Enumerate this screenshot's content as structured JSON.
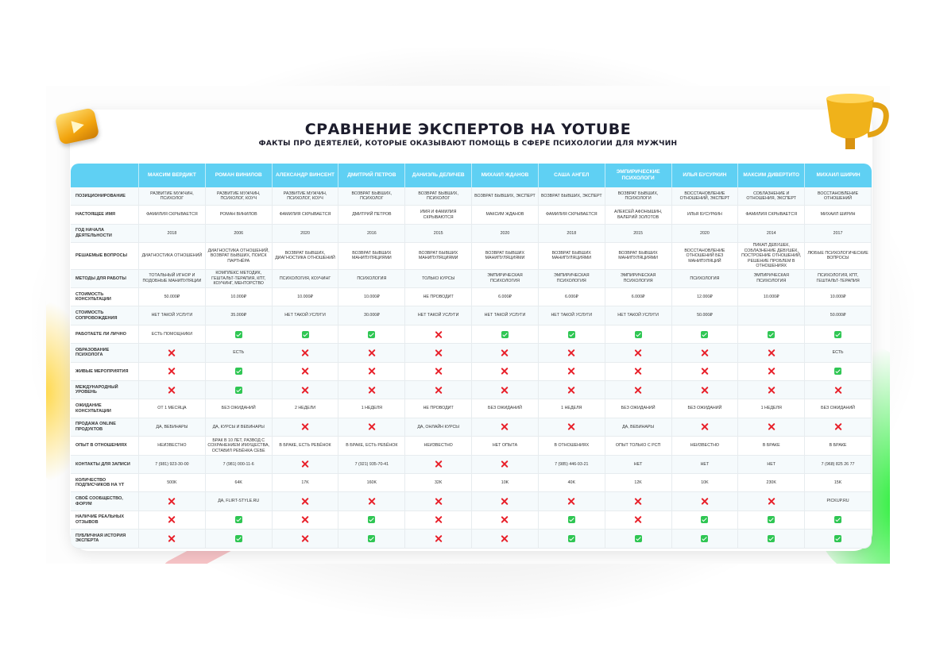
{
  "header": {
    "title": "СРАВНЕНИЕ ЭКСПЕРТОВ НА YOTUBE",
    "subtitle": "ФАКТЫ ПРО ДЕЯТЕЛЕЙ, КОТОРЫЕ ОКАЗЫВАЮТ ПОМОЩЬ В СФЕРЕ ПСИХОЛОГИИ ДЛЯ МУЖЧИН"
  },
  "colors": {
    "header_bg": "#5fd0f3",
    "check": "#2fc653",
    "cross": "#e8202a"
  },
  "table": {
    "experts": [
      "Максим Вердикт",
      "Роман Винилов",
      "Александр Винсент",
      "Дмитрий Петров",
      "Даниэль Деличев",
      "Михаил Жданов",
      "Саша Ангел",
      "Эмпирические психологи",
      "Илья Бусуркин",
      "Максим Дивертито",
      "Михаил Ширин"
    ],
    "rows": [
      {
        "label": "Позиционирование",
        "cells": [
          "Развитие мужчин, психолог",
          "Развитие мужчин, психолог, коуч",
          "Развитие мужчин, психолог, коуч",
          "Возврат бывших, психолог",
          "Возврат бывших, психолог",
          "Возврат бывших, эксперт",
          "Возврат бывших, эксперт",
          "Возврат бывших, психологи",
          "Восстановление отношений, эксперт",
          "Соблазнение и отношения, эксперт",
          "Восстановление отношений"
        ]
      },
      {
        "label": "Настоящее имя",
        "cells": [
          "Фамилия скрывается",
          "Роман Винилов",
          "Фамилия скрывается",
          "Дмитрий Петров",
          "Имя и фамилия скрываются",
          "Максим Жданов",
          "Фамилия скрывается",
          "Алексей Афонышин, Валерий Золотов",
          "Илья Бусуркин",
          "Фамилия скрывается",
          "Михаил Ширин"
        ]
      },
      {
        "label": "Год начала деятельности",
        "cells": [
          "2018",
          "2006",
          "2020",
          "2016",
          "2015",
          "2020",
          "2018",
          "2015",
          "2020",
          "2014",
          "2017"
        ]
      },
      {
        "label": "Решаемые вопросы",
        "cells": [
          "Диагностика отношений",
          "Диагностика отношений, возврат бывших, поиск партнёра",
          "Возврат бывших, диагностика отношений",
          "Возврат бывших манипуляциями",
          "Возврат бывших манипуляциями",
          "Возврат бывших манипуляциями",
          "Возврат бывших манипуляциями",
          "Возврат бывших манипуляциями",
          "Восстановление отношений без манипуляций",
          "Пикап девушек, соблазнение девушек, построение отношений, решение проблем в отношениях",
          "Любые психологические вопросы"
        ]
      },
      {
        "label": "Методы для работы",
        "cells": [
          "Тотальный игнор и подобные манипуляции",
          "Комплекс методик, гештальт-терапия, КПТ, коучинг, менторство",
          "Психология, коучинг",
          "Психология",
          "Только курсы",
          "Эмпирическая психология",
          "Эмпирическая психология",
          "Эмпирическая психология",
          "Психология",
          "Эмпирическая психология",
          "Психология, КПТ, гештальт-терапия"
        ]
      },
      {
        "label": "Стоимость консультации",
        "cells": [
          "50.000₽",
          "10.000₽",
          "10.000₽",
          "10.000₽",
          "Не проводит",
          "6.000₽",
          "6.000₽",
          "6.000₽",
          "12.000₽",
          "10.000₽",
          "10.000₽"
        ]
      },
      {
        "label": "Стоимость сопровождения",
        "cells": [
          "Нет такой услуги",
          "35.000₽",
          "Нет такой услуги",
          "30.000₽",
          "Нет такой услуги",
          "Нет такой услуги",
          "Нет такой услуги",
          "Нет такой услуги",
          "50.000₽",
          "",
          "50.000₽"
        ]
      },
      {
        "label": "Работаете ли лично",
        "cells": [
          "Есть помощники",
          "✓",
          "✓",
          "✓",
          "✗",
          "✓",
          "✓",
          "✓",
          "✓",
          "✓",
          "✓"
        ]
      },
      {
        "label": "Образование психолога",
        "cells": [
          "✗",
          "Есть",
          "✗",
          "✗",
          "✗",
          "✗",
          "✗",
          "✗",
          "✗",
          "✗",
          "Есть"
        ]
      },
      {
        "label": "Живые мероприятия",
        "cells": [
          "✗",
          "✓",
          "✗",
          "✗",
          "✗",
          "✗",
          "✗",
          "✗",
          "✗",
          "✗",
          "✓"
        ]
      },
      {
        "label": "Международный уровень",
        "cells": [
          "✗",
          "✓",
          "✗",
          "✗",
          "✗",
          "✗",
          "✗",
          "✗",
          "✗",
          "✗",
          "✗"
        ]
      },
      {
        "label": "Ожидание консультации",
        "cells": [
          "От 1 месяца",
          "Без ожиданий",
          "2 недели",
          "1 неделя",
          "Не проводит",
          "Без ожиданий",
          "1 неделя",
          "Без ожиданий",
          "Без ожиданий",
          "1 неделя",
          "Без ожиданий"
        ]
      },
      {
        "label": "Продажа online продуктов",
        "cells": [
          "Да, вебинары",
          "Да, курсы и вебинары",
          "✗",
          "✗",
          "Да, онлайн курсы",
          "✗",
          "✗",
          "Да, вебинары",
          "✗",
          "✗",
          "✗"
        ]
      },
      {
        "label": "Опыт в отношениях",
        "cells": [
          "Неизвестно",
          "Брак в 10 лет, развод с сохранением имущества, оставил ребёнка себе",
          "В браке, есть ребёнок",
          "В браке, есть ребёнок",
          "Неизвестно",
          "Нет опыта",
          "В отношениях",
          "Опыт только с РСП",
          "Неизвестно",
          "В браке",
          "В браке"
        ]
      },
      {
        "label": "Контакты для записи",
        "cells": [
          "7 (981) 923-30-00",
          "7 (981) 000-11-6",
          "✗",
          "7 (921) 935-70-41",
          "✗",
          "✗",
          "7 (985) 446-93-21",
          "Нет",
          "Нет",
          "Нет",
          "7 (968) 825 26 77"
        ]
      },
      {
        "label": "Количество подписчиков на YT",
        "cells": [
          "500K",
          "64K",
          "17K",
          "160K",
          "32K",
          "10K",
          "40K",
          "12K",
          "10K",
          "230K",
          "15K"
        ]
      },
      {
        "label": "Своё сообщество, форум",
        "cells": [
          "✗",
          "Да, flirt-style.ru",
          "✗",
          "✗",
          "✗",
          "✗",
          "✗",
          "✗",
          "✗",
          "✗",
          "pickup.ru"
        ]
      },
      {
        "label": "Наличие реальных отзывов",
        "cells": [
          "✗",
          "✓",
          "✗",
          "✓",
          "✗",
          "✗",
          "✓",
          "✗",
          "✓",
          "✓",
          "✓"
        ]
      },
      {
        "label": "Публичная история эксперта",
        "cells": [
          "✗",
          "✓",
          "✗",
          "✓",
          "✗",
          "✗",
          "✓",
          "✓",
          "✓",
          "✓",
          "✓"
        ]
      }
    ]
  }
}
